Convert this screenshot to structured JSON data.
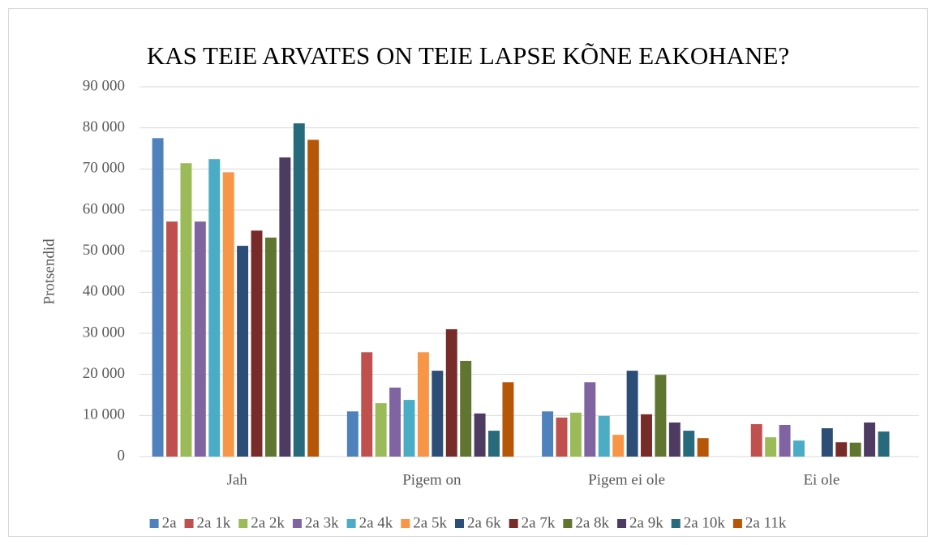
{
  "chart_data": {
    "type": "bar",
    "title": "KAS TEIE ARVATES ON TEIE LAPSE KÕNE EAKOHANE?",
    "y_label": "Protsendid",
    "categories": [
      "Jah",
      "Pigem on",
      "Pigem ei ole",
      "Ei ole"
    ],
    "series": [
      {
        "name": "2a",
        "color": "#4f81bd",
        "values": [
          77500,
          11000,
          11000,
          0
        ]
      },
      {
        "name": "2a 1k",
        "color": "#c0504d",
        "values": [
          57200,
          25400,
          9500,
          7900
        ]
      },
      {
        "name": "2a 2k",
        "color": "#9bbb59",
        "values": [
          71400,
          13000,
          10700,
          4700
        ]
      },
      {
        "name": "2a 3k",
        "color": "#8064a2",
        "values": [
          57200,
          16800,
          18100,
          7700
        ]
      },
      {
        "name": "2a 4k",
        "color": "#4bacc6",
        "values": [
          72400,
          13800,
          9900,
          3900
        ]
      },
      {
        "name": "2a 5k",
        "color": "#f79646",
        "values": [
          69200,
          25400,
          5300,
          0
        ]
      },
      {
        "name": "2a 6k",
        "color": "#2c4d75",
        "values": [
          51300,
          20900,
          20900,
          6900
        ]
      },
      {
        "name": "2a 7k",
        "color": "#772c2a",
        "values": [
          55000,
          31000,
          10300,
          3500
        ]
      },
      {
        "name": "2a 8k",
        "color": "#5f7530",
        "values": [
          53300,
          23300,
          19900,
          3400
        ]
      },
      {
        "name": "2a 9k",
        "color": "#4d3b62",
        "values": [
          72800,
          10500,
          8300,
          8300
        ]
      },
      {
        "name": "2a 10k",
        "color": "#276a7c",
        "values": [
          81100,
          6300,
          6300,
          6100
        ]
      },
      {
        "name": "2a 11k",
        "color": "#b65708",
        "values": [
          77100,
          18100,
          4500,
          0
        ]
      }
    ],
    "ylim": [
      0,
      90000
    ],
    "yticks": [
      0,
      {
        "value": 10000,
        "label": "10 000"
      },
      {
        "value": 20000,
        "label": "20 000"
      },
      {
        "value": 30000,
        "label": "30 000"
      },
      {
        "value": 40000,
        "label": "40 000"
      },
      {
        "value": 50000,
        "label": "50 000"
      },
      {
        "value": 60000,
        "label": "60 000"
      },
      {
        "value": 70000,
        "label": "70 000"
      },
      {
        "value": 80000,
        "label": "80 000"
      },
      {
        "value": 90000,
        "label": "90 000"
      }
    ],
    "grid": true,
    "legend": "bottom"
  }
}
